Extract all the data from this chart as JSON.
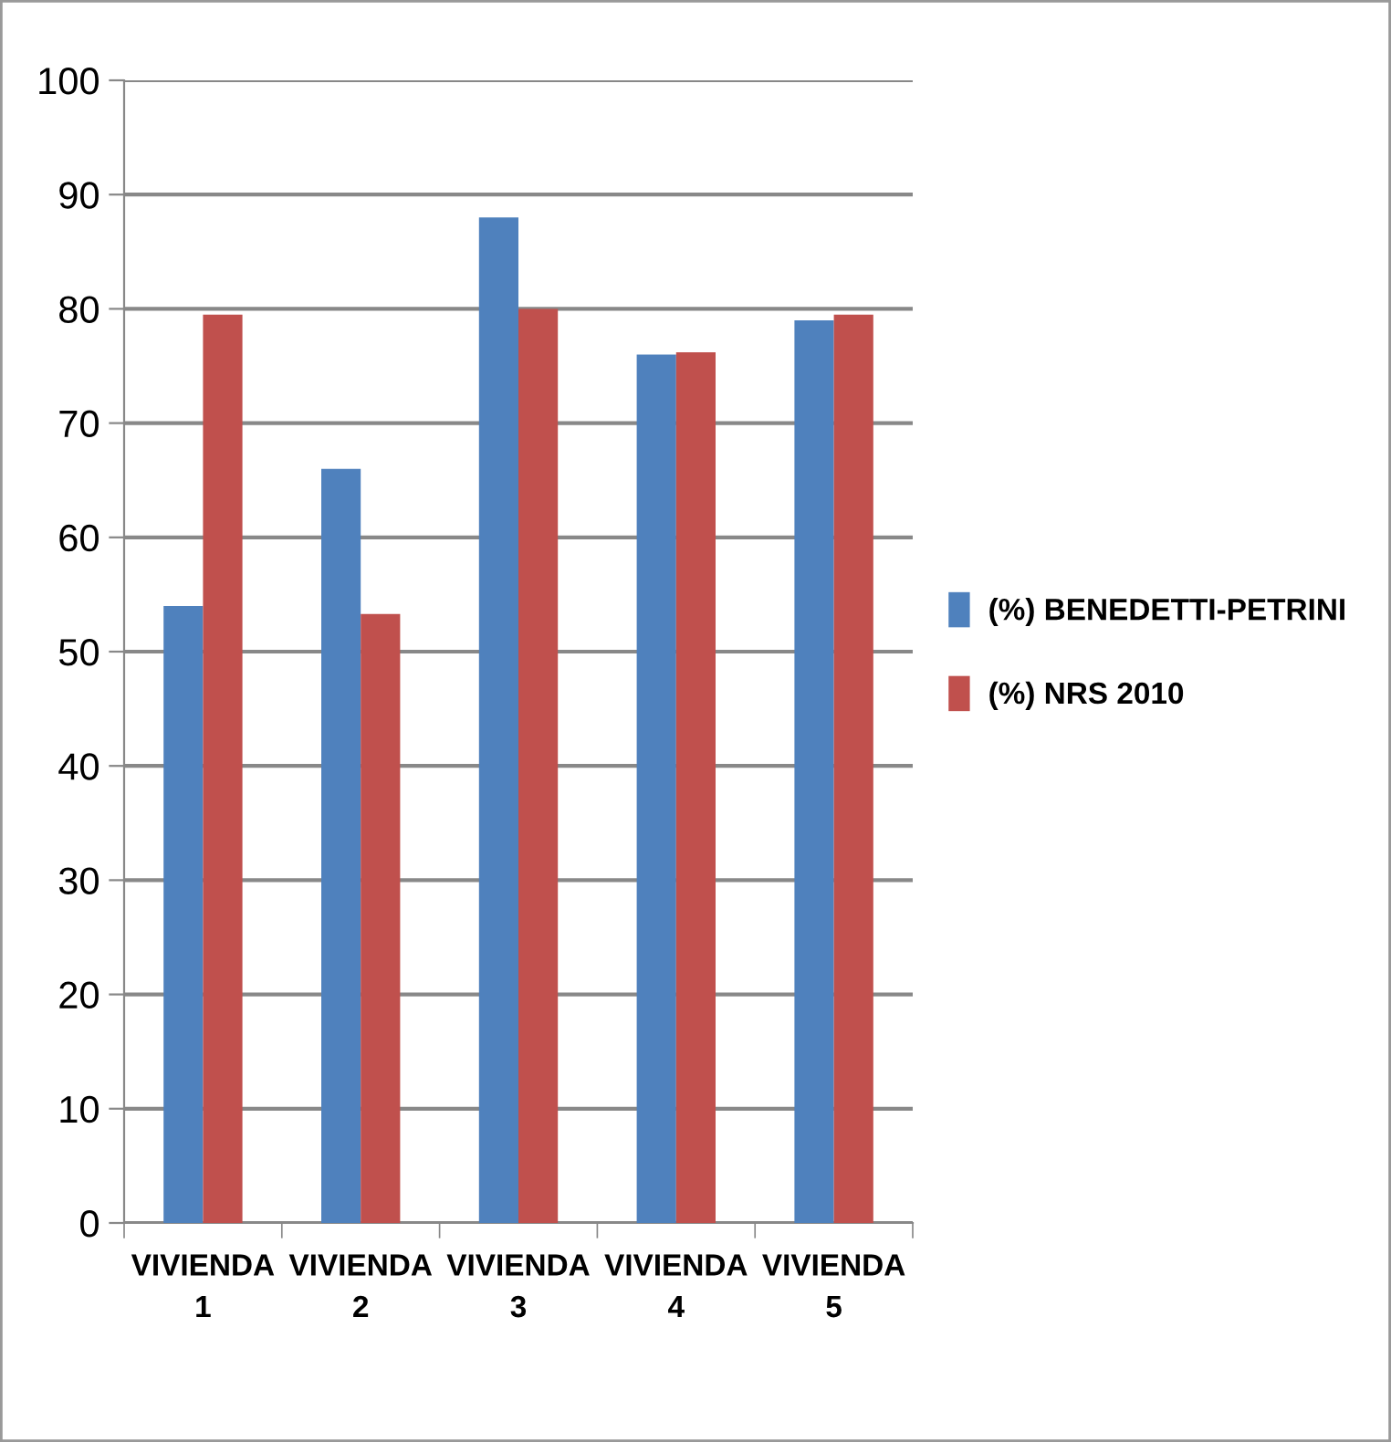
{
  "chart_data": {
    "type": "bar",
    "categories": [
      "VIVIENDA\n1",
      "VIVIENDA\n2",
      "VIVIENDA\n3",
      "VIVIENDA\n4",
      "VIVIENDA\n5"
    ],
    "series": [
      {
        "name": "(%) BENEDETTI-PETRINI",
        "color": "#4f81bd",
        "values": [
          54,
          66,
          88,
          76,
          79
        ]
      },
      {
        "name": "(%) NRS 2010",
        "color": "#c0504d",
        "values": [
          79.5,
          53.3,
          80,
          76.2,
          79.5
        ]
      }
    ],
    "ylim": [
      0,
      100
    ],
    "yticks": [
      0,
      10,
      20,
      30,
      40,
      50,
      60,
      70,
      80,
      90,
      100
    ],
    "grid": "y",
    "legend": "right"
  }
}
